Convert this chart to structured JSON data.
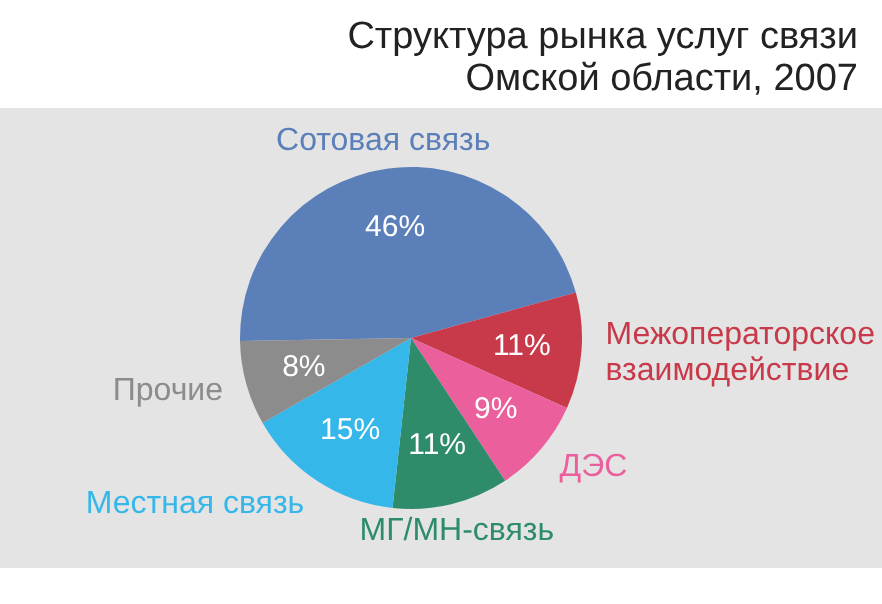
{
  "chart_data": {
    "type": "pie",
    "title": "Структура рынка услуг связи\nОмской области,  2007",
    "categories": [
      "Сотовая связь",
      "Межоператорское взаимодействие",
      "ДЭС",
      "МГ/МН-связь",
      "Местная связь",
      "Прочие"
    ],
    "values": [
      46,
      11,
      9,
      11,
      15,
      8
    ],
    "value_labels": [
      "46%",
      "11%",
      "9%",
      "11%",
      "15%",
      "8%"
    ],
    "colors": [
      "#5b7fb8",
      "#c8394a",
      "#ea5f9c",
      "#2f8c6b",
      "#35b7ea",
      "#8c8c8c"
    ],
    "legend": false
  }
}
